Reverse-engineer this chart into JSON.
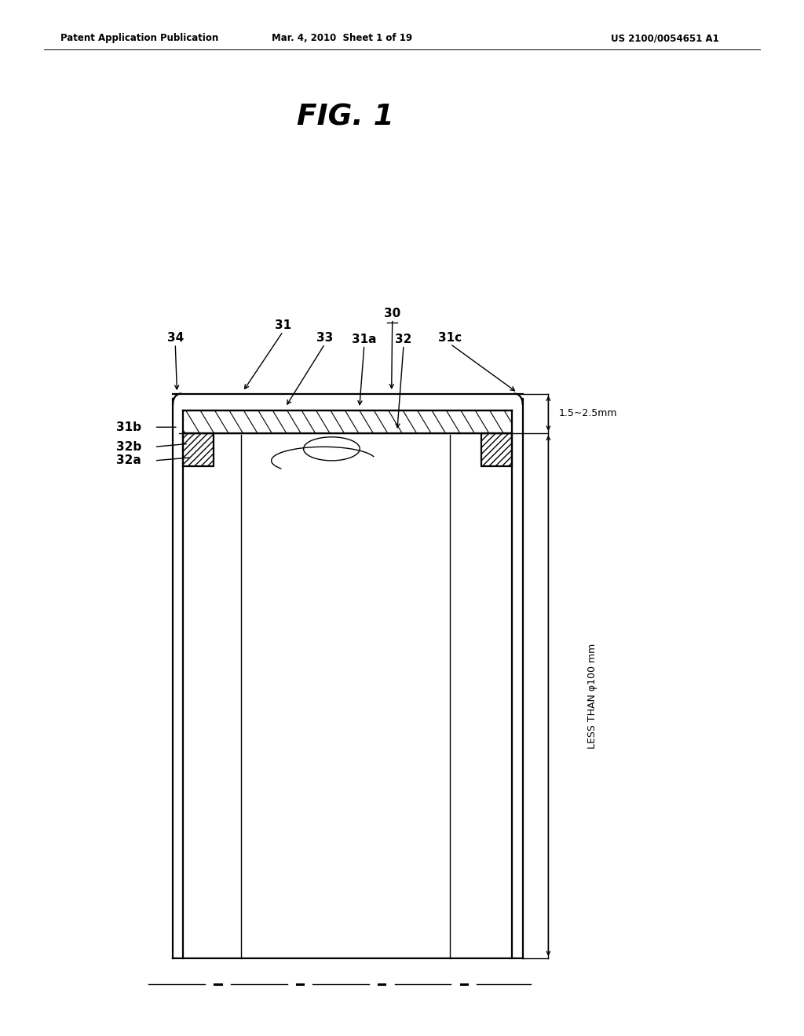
{
  "bg_color": "#ffffff",
  "line_color": "#000000",
  "header_left": "Patent Application Publication",
  "header_center": "Mar. 4, 2010  Sheet 1 of 19",
  "header_right": "US 2100/0054651 A1",
  "fig_title": "FIG. 1",
  "dim_small": "1.5~2.5mm",
  "dim_large": "LESS THAN φ100 mm",
  "CL": 0.215,
  "CR": 0.65,
  "CT": 0.62,
  "CB": 0.075,
  "wt": 0.013,
  "rh": 0.038,
  "IL": 0.278,
  "IR": 0.582,
  "IL2": 0.3,
  "IR2": 0.56
}
